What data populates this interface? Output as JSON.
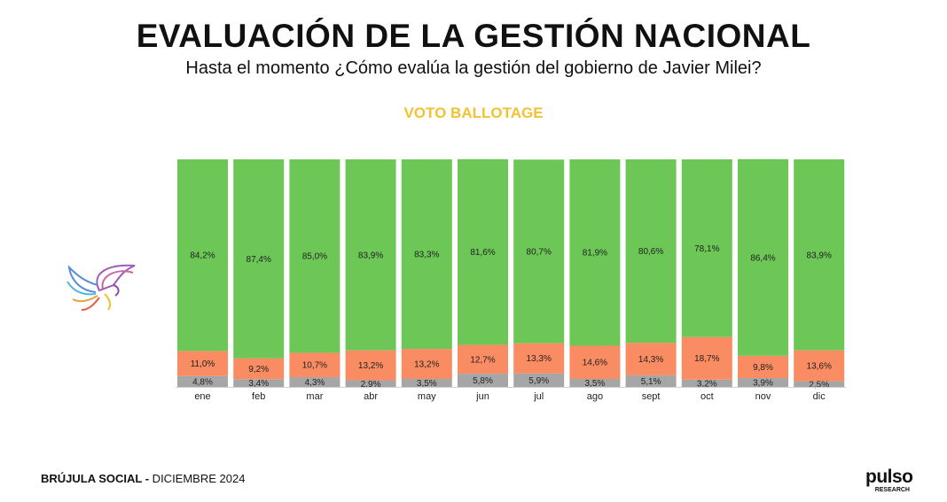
{
  "header": {
    "title": "EVALUACIÓN DE LA GESTIÓN NACIONAL",
    "subtitle": "Hasta el momento ¿Cómo evalúa la gestión del gobierno de Javier Milei?",
    "chart_label": "VOTO BALLOTAGE"
  },
  "footer": {
    "strong": "BRÚJULA SOCIAL -",
    "date": " DICIEMBRE 2024"
  },
  "brand": {
    "name": "pulso",
    "sub": "RESEARCH"
  },
  "colors": {
    "green": "#6cc757",
    "orange": "#f98c62",
    "gray": "#a6a6a6"
  },
  "chart_data": {
    "type": "bar",
    "stacked": true,
    "title": "VOTO BALLOTAGE",
    "categories": [
      "ene",
      "feb",
      "mar",
      "abr",
      "may",
      "jun",
      "jul",
      "ago",
      "sept",
      "oct",
      "nov",
      "dic"
    ],
    "series": [
      {
        "name": "gray",
        "color": "#a6a6a6",
        "values": [
          4.8,
          3.4,
          4.3,
          2.9,
          3.5,
          5.8,
          5.9,
          3.5,
          5.1,
          3.2,
          3.9,
          2.5
        ],
        "labels": [
          "4,8%",
          "3,4%",
          "4,3%",
          "2,9%",
          "3,5%",
          "5,8%",
          "5,9%",
          "3,5%",
          "5,1%",
          "3,2%",
          "3,9%",
          "2,5%"
        ]
      },
      {
        "name": "orange",
        "color": "#f98c62",
        "values": [
          11.0,
          9.2,
          10.7,
          13.2,
          13.2,
          12.7,
          13.3,
          14.6,
          14.3,
          18.7,
          9.8,
          13.6
        ],
        "labels": [
          "11,0%",
          "9,2%",
          "10,7%",
          "13,2%",
          "13,2%",
          "12,7%",
          "13,3%",
          "14,6%",
          "14,3%",
          "18,7%",
          "9,8%",
          "13,6%"
        ]
      },
      {
        "name": "green",
        "color": "#6cc757",
        "values": [
          84.2,
          87.4,
          85.0,
          83.9,
          83.3,
          81.6,
          80.7,
          81.9,
          80.6,
          78.1,
          86.4,
          83.9
        ],
        "labels": [
          "84,2%",
          "87,4%",
          "85,0%",
          "83,9%",
          "83,3%",
          "81,6%",
          "80,7%",
          "81,9%",
          "80,6%",
          "78,1%",
          "86,4%",
          "83,9%"
        ]
      }
    ],
    "ylim": [
      0,
      100
    ],
    "xlabel": "",
    "ylabel": "",
    "legend": "none",
    "grid": false
  }
}
